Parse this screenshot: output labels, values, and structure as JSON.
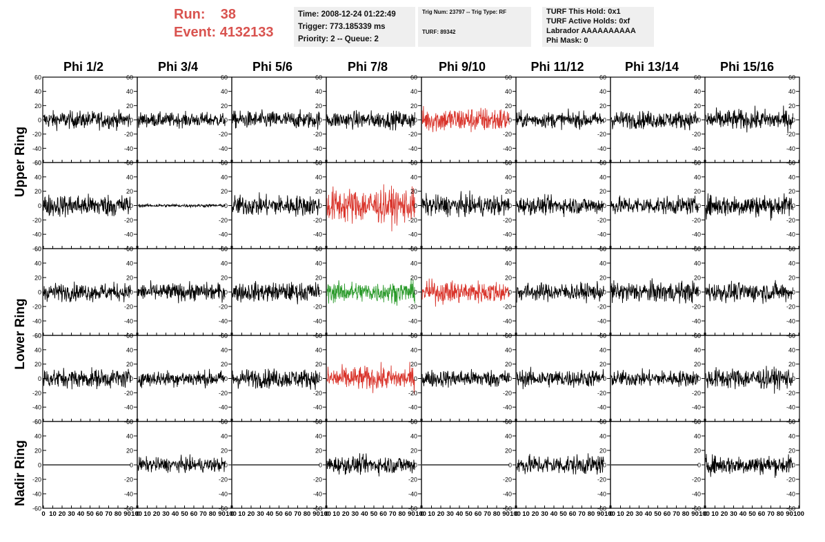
{
  "header": {
    "run_label": "Run:",
    "run_value": "38",
    "event_label": "Event:",
    "event_value": "4132133",
    "time": "Time: 2008-12-24 01:22:49",
    "trigger": "Trigger: 773.185339 ms",
    "priority": "Priority: 2 -- Queue: 2",
    "trig_num": "Trig Num: 23797 -- Trig Type: RF",
    "turf": "TURF: 89342",
    "turf_hold": "TURF This Hold: 0x1",
    "turf_active": "TURF Active Holds: 0xf",
    "labrador": "Labrador AAAAAAAAAA",
    "phi_mask": "Phi Mask: 0"
  },
  "columns": [
    "Phi 1/2",
    "Phi 3/4",
    "Phi 5/6",
    "Phi 7/8",
    "Phi 9/10",
    "Phi 11/12",
    "Phi 13/14",
    "Phi 15/16"
  ],
  "row_groups": [
    "Upper Ring",
    "Lower Ring",
    "Nadir Ring"
  ],
  "colors": {
    "normal": "#000000",
    "red": "#d9342b",
    "green": "#2a9a2a",
    "text_red": "#d9534f"
  },
  "chart_data": {
    "type": "line",
    "grid": false,
    "ylim": [
      -60,
      60
    ],
    "xlim": [
      0,
      100
    ],
    "yticks": [
      -60,
      -40,
      -20,
      0,
      20,
      40,
      60
    ],
    "xticks": [
      0,
      10,
      20,
      30,
      40,
      50,
      60,
      70,
      80,
      90,
      100
    ],
    "panels": [
      [
        "normal",
        "normal",
        "normal",
        "normal",
        "red",
        "normal",
        "normal",
        "normal"
      ],
      [
        "normal",
        "normal",
        "normal",
        "red",
        "normal",
        "normal",
        "normal",
        "normal"
      ],
      [
        "normal",
        "normal",
        "normal",
        "green",
        "red",
        "normal",
        "normal",
        "normal"
      ],
      [
        "normal",
        "normal",
        "normal",
        "red",
        "normal",
        "normal",
        "normal",
        "normal"
      ],
      [
        "normal",
        "normal",
        "normal",
        "normal",
        "normal",
        "normal",
        "normal",
        "normal"
      ]
    ],
    "amplitude": [
      [
        11,
        9,
        11,
        11,
        16,
        10,
        11,
        13
      ],
      [
        14,
        2,
        13,
        22,
        13,
        11,
        11,
        14
      ],
      [
        11,
        11,
        12,
        13,
        14,
        11,
        13,
        12
      ],
      [
        12,
        10,
        12,
        15,
        11,
        11,
        10,
        13
      ],
      [
        0,
        9,
        0,
        11,
        0,
        12,
        0,
        12
      ]
    ]
  }
}
